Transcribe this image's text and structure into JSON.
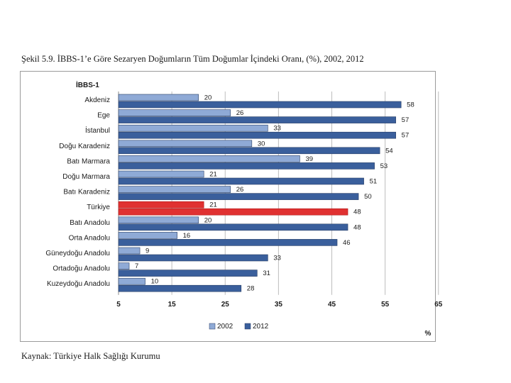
{
  "figure_title": "Şekil 5.9. İBBS-1’e Göre Sezaryen Doğumların Tüm Doğumlar İçindeki Oranı, (%), 2002, 2012",
  "source_note": "Kaynak: Türkiye Halk Sağlığı Kurumu",
  "chart_data": {
    "type": "bar",
    "orientation": "horizontal",
    "title": "İBBS-1",
    "xlabel": "%",
    "ylabel": "",
    "xlim": [
      5,
      65
    ],
    "xticks": [
      5,
      15,
      25,
      35,
      45,
      55,
      65
    ],
    "grid": true,
    "legend_position": "bottom-center",
    "categories": [
      "Akdeniz",
      "Ege",
      "İstanbul",
      "Doğu Karadeniz",
      "Batı Marmara",
      "Doğu Marmara",
      "Batı Karadeniz",
      "Türkiye",
      "Batı Anadolu",
      "Orta Anadolu",
      "Güneydoğu Anadolu",
      "Ortadoğu Anadolu",
      "Kuzeydoğu Anadolu"
    ],
    "highlight_category": "Türkiye",
    "series": [
      {
        "name": "2002",
        "values": [
          20,
          26,
          33,
          30,
          39,
          21,
          26,
          21,
          20,
          16,
          9,
          7,
          10
        ],
        "color": "#8faad6"
      },
      {
        "name": "2012",
        "values": [
          58,
          57,
          57,
          54,
          53,
          51,
          50,
          48,
          48,
          46,
          33,
          31,
          28
        ],
        "color": "#3a5f9c"
      }
    ],
    "highlight_color": "#e03131"
  }
}
